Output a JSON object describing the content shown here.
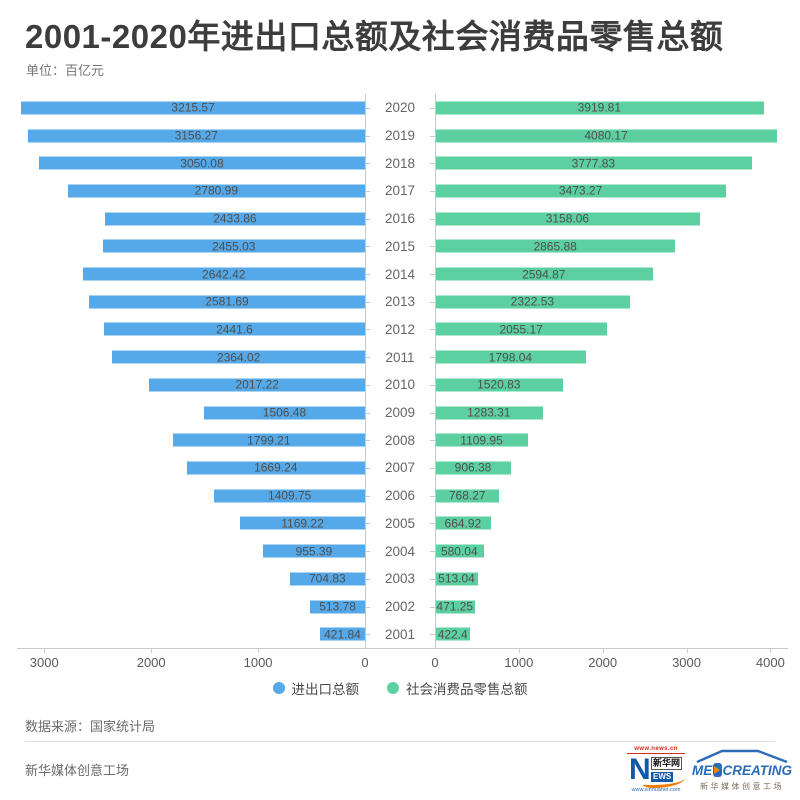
{
  "header": {
    "title": "2001-2020年进出口总额及社会消费品零售总额",
    "unit_label": "单位：百亿元"
  },
  "chart_data": {
    "type": "bar",
    "orientation": "horizontal-diverging",
    "categories": [
      "2020",
      "2019",
      "2018",
      "2017",
      "2016",
      "2015",
      "2014",
      "2013",
      "2012",
      "2011",
      "2010",
      "2009",
      "2008",
      "2007",
      "2006",
      "2005",
      "2004",
      "2003",
      "2002",
      "2001"
    ],
    "series": [
      {
        "name": "进出口总额",
        "side": "left",
        "color": "#55a9e8",
        "axis_max": 3255,
        "ticks": [
          3000,
          2000,
          1000,
          0
        ],
        "values": [
          3215.57,
          3156.27,
          3050.08,
          2780.99,
          2433.86,
          2455.03,
          2642.42,
          2581.69,
          2441.6,
          2364.02,
          2017.22,
          1506.48,
          1799.21,
          1669.24,
          1409.75,
          1169.22,
          955.39,
          704.83,
          513.78,
          421.84
        ]
      },
      {
        "name": "社会消费品零售总额",
        "side": "right",
        "color": "#5dd0a2",
        "axis_max": 4210,
        "ticks": [
          0,
          1000,
          2000,
          3000,
          4000
        ],
        "values": [
          3919.81,
          4080.17,
          3777.83,
          3473.27,
          3158.06,
          2865.88,
          2594.87,
          2322.53,
          2055.17,
          1798.04,
          1520.83,
          1283.31,
          1109.95,
          906.38,
          768.27,
          664.92,
          580.04,
          513.04,
          471.25,
          422.4
        ]
      }
    ],
    "grid": false,
    "legend_position": "bottom"
  },
  "legend": [
    {
      "label": "进出口总额",
      "color": "#55a9e8"
    },
    {
      "label": "社会消费品零售总额",
      "color": "#5dd0a2"
    }
  ],
  "footer": {
    "source": "数据来源：国家统计局",
    "credit": "新华媒体创意工场"
  },
  "logos": {
    "xinhua": {
      "top_url": "www.news.cn",
      "n": "N",
      "site_name": "新华网",
      "ews": "EWS",
      "bottom_url": "www.xinhuanet.com"
    },
    "medcreating": {
      "prefix": "ME",
      "suffix": "CREATING",
      "subtitle": "新华媒体创意工场"
    }
  }
}
